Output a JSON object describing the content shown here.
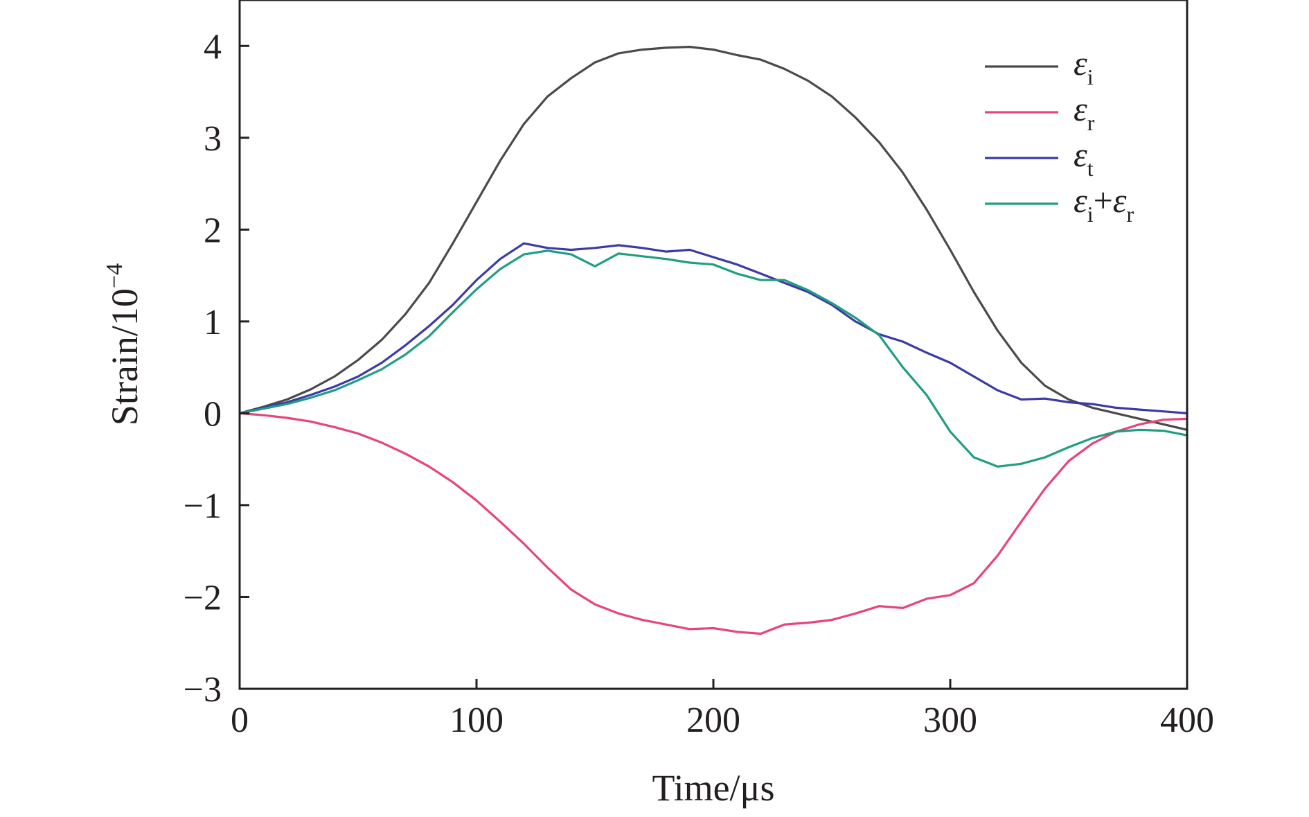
{
  "chart_data": {
    "type": "line",
    "xlabel": "Time/μs",
    "ylabel_base": "Strain/10",
    "ylabel_exp": "−4",
    "xlim": [
      0,
      400
    ],
    "ylim": [
      -3,
      4.5
    ],
    "xticks": [
      0,
      100,
      200,
      300,
      400
    ],
    "xtick_labels": [
      "0",
      "100",
      "200",
      "300",
      "400"
    ],
    "yticks": [
      -3,
      -2,
      -1,
      0,
      1,
      2,
      3,
      4
    ],
    "ytick_labels": [
      "−3",
      "−2",
      "−1",
      "0",
      "1",
      "2",
      "3",
      "4"
    ],
    "legend_position": "top-right",
    "grid": false,
    "series": [
      {
        "name": "εi",
        "legend_symbol": "ε",
        "legend_sub": "i",
        "color": "#4a4a4a",
        "x": [
          0,
          10,
          20,
          30,
          40,
          50,
          60,
          70,
          80,
          90,
          100,
          110,
          120,
          130,
          140,
          150,
          160,
          170,
          180,
          190,
          200,
          210,
          220,
          230,
          240,
          250,
          260,
          270,
          280,
          290,
          300,
          310,
          320,
          330,
          340,
          350,
          360,
          370,
          380,
          390,
          400
        ],
        "y": [
          0,
          0.07,
          0.15,
          0.26,
          0.4,
          0.58,
          0.8,
          1.08,
          1.42,
          1.85,
          2.3,
          2.75,
          3.15,
          3.45,
          3.65,
          3.82,
          3.92,
          3.96,
          3.98,
          3.99,
          3.96,
          3.9,
          3.85,
          3.75,
          3.62,
          3.45,
          3.22,
          2.95,
          2.62,
          2.22,
          1.78,
          1.32,
          0.9,
          0.55,
          0.3,
          0.15,
          0.06,
          0.0,
          -0.06,
          -0.12,
          -0.18
        ]
      },
      {
        "name": "εr",
        "legend_symbol": "ε",
        "legend_sub": "r",
        "color": "#e8447a",
        "x": [
          0,
          10,
          20,
          30,
          40,
          50,
          60,
          70,
          80,
          90,
          100,
          110,
          120,
          130,
          140,
          150,
          160,
          170,
          180,
          190,
          200,
          210,
          220,
          230,
          240,
          250,
          260,
          270,
          280,
          290,
          300,
          310,
          320,
          330,
          340,
          350,
          360,
          370,
          380,
          390,
          400
        ],
        "y": [
          0,
          -0.02,
          -0.05,
          -0.09,
          -0.15,
          -0.22,
          -0.32,
          -0.44,
          -0.58,
          -0.75,
          -0.95,
          -1.18,
          -1.42,
          -1.68,
          -1.92,
          -2.08,
          -2.18,
          -2.25,
          -2.3,
          -2.35,
          -2.34,
          -2.38,
          -2.4,
          -2.3,
          -2.28,
          -2.25,
          -2.18,
          -2.1,
          -2.12,
          -2.02,
          -1.98,
          -1.85,
          -1.55,
          -1.18,
          -0.82,
          -0.52,
          -0.33,
          -0.2,
          -0.12,
          -0.07,
          -0.06
        ]
      },
      {
        "name": "εt",
        "legend_symbol": "ε",
        "legend_sub": "t",
        "color": "#3b3ba8",
        "x": [
          0,
          10,
          20,
          30,
          40,
          50,
          60,
          70,
          80,
          90,
          100,
          110,
          120,
          130,
          140,
          150,
          160,
          170,
          180,
          190,
          200,
          210,
          220,
          230,
          240,
          250,
          260,
          270,
          280,
          290,
          300,
          310,
          320,
          330,
          340,
          350,
          360,
          370,
          380,
          390,
          400
        ],
        "y": [
          0,
          0.06,
          0.12,
          0.2,
          0.29,
          0.4,
          0.55,
          0.74,
          0.95,
          1.18,
          1.45,
          1.68,
          1.85,
          1.8,
          1.78,
          1.8,
          1.83,
          1.8,
          1.76,
          1.78,
          1.7,
          1.62,
          1.52,
          1.42,
          1.32,
          1.18,
          1.0,
          0.86,
          0.78,
          0.66,
          0.55,
          0.4,
          0.25,
          0.15,
          0.16,
          0.12,
          0.1,
          0.06,
          0.04,
          0.02,
          0.0
        ]
      },
      {
        "name": "εi+εr",
        "legend_symbol": "ε",
        "legend_sub": "i",
        "legend_symbol2": "ε",
        "legend_sub2": "r",
        "color": "#1f9e82",
        "x": [
          0,
          10,
          20,
          30,
          40,
          50,
          60,
          70,
          80,
          90,
          100,
          110,
          120,
          130,
          140,
          150,
          160,
          170,
          180,
          190,
          200,
          210,
          220,
          230,
          240,
          250,
          260,
          270,
          280,
          290,
          300,
          310,
          320,
          330,
          340,
          350,
          360,
          370,
          380,
          390,
          400
        ],
        "y": [
          0,
          0.05,
          0.1,
          0.17,
          0.25,
          0.36,
          0.48,
          0.64,
          0.84,
          1.1,
          1.35,
          1.57,
          1.73,
          1.77,
          1.73,
          1.6,
          1.74,
          1.71,
          1.68,
          1.64,
          1.62,
          1.52,
          1.45,
          1.45,
          1.34,
          1.2,
          1.04,
          0.85,
          0.5,
          0.2,
          -0.2,
          -0.48,
          -0.58,
          -0.55,
          -0.48,
          -0.37,
          -0.27,
          -0.2,
          -0.18,
          -0.19,
          -0.24
        ]
      }
    ]
  }
}
